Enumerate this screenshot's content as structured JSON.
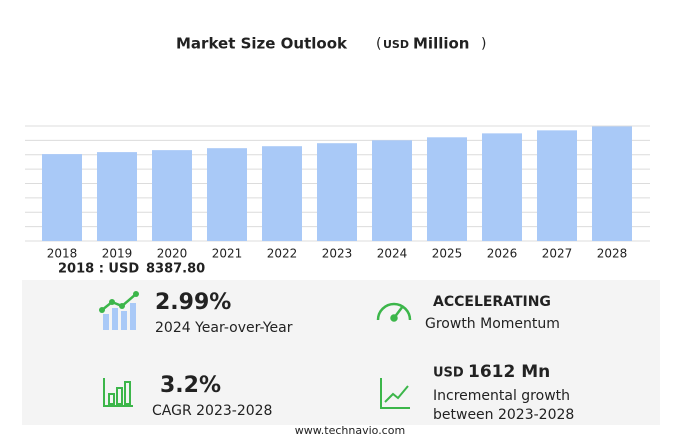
{
  "chart_data": {
    "type": "bar",
    "title": "Market Size Outlook",
    "unit_text": [
      "(",
      "USD",
      "Million",
      ")"
    ],
    "categories": [
      "2018",
      "2019",
      "2020",
      "2021",
      "2022",
      "2023",
      "2024",
      "2025",
      "2026",
      "2027",
      "2028"
    ],
    "values": [
      8387.8,
      8580,
      8770,
      8960,
      9150,
      9440,
      9720,
      10010,
      10390,
      10680,
      11060
    ],
    "value_labels": [
      "8387.80",
      null,
      null,
      null,
      null,
      null,
      null,
      null,
      null,
      null,
      null
    ],
    "highlight_label": "2018 : USD",
    "color": "#a9c9f7",
    "ylim": [
      0,
      11100
    ]
  },
  "stats": [
    {
      "value": "2.99%",
      "label": "2024 Year-over-Year"
    },
    {
      "value": "ACCELERATING",
      "label": "Growth Momentum"
    },
    {
      "value": "3.2%",
      "label": "CAGR 2023-2028"
    },
    {
      "value_unit": "USD",
      "value": "1612 Mn",
      "label": [
        "Incremental growth",
        "between 2023-2028"
      ]
    }
  ],
  "footer": "www.technavio.com"
}
